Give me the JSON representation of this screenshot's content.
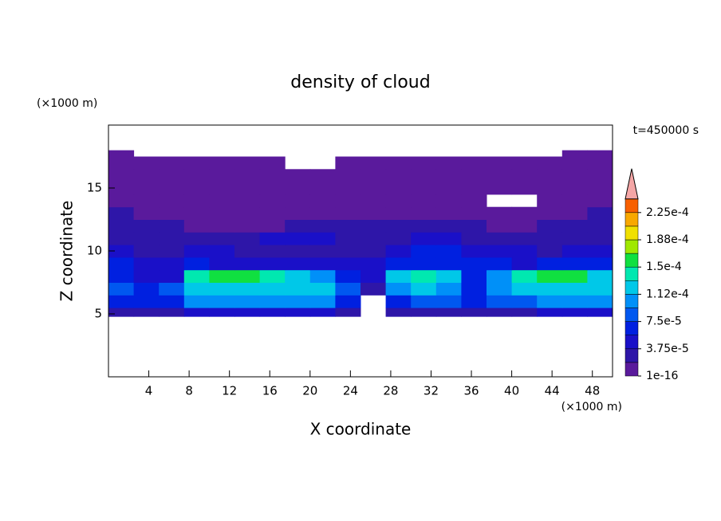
{
  "chart_data": {
    "type": "contour",
    "title": "density of cloud",
    "subtitle": "t=450000 s",
    "xlabel": "X coordinate",
    "ylabel": "Z coordinate",
    "xunit": "(×1000 m)",
    "yunit": "(×1000 m)",
    "xlim": [
      0,
      50
    ],
    "ylim": [
      0,
      20
    ],
    "xticks": [
      4,
      8,
      12,
      16,
      20,
      24,
      28,
      32,
      36,
      40,
      44,
      48
    ],
    "yticks": [
      5,
      10,
      15
    ],
    "x": [
      0,
      2.5,
      5,
      7.5,
      10,
      12.5,
      15,
      17.5,
      20,
      22.5,
      25,
      27.5,
      30,
      32.5,
      35,
      37.5,
      40,
      42.5,
      45,
      47.5,
      50
    ],
    "y": [
      4.8,
      5.5,
      6.5,
      7.5,
      8.5,
      9.5,
      10.5,
      11.5,
      12.5,
      13.5,
      14.5,
      15.5,
      16.5,
      17.5,
      18
    ],
    "z": [
      [
        3e-05,
        3e-05,
        3e-05,
        5e-05,
        5e-05,
        5e-05,
        5e-05,
        5e-05,
        5e-05,
        3e-05,
        null,
        3e-05,
        3e-05,
        3e-05,
        3e-05,
        3e-05,
        3e-05,
        5e-05,
        5e-05,
        5e-05
      ],
      [
        7e-05,
        7e-05,
        7e-05,
        0.00011,
        0.00011,
        0.00011,
        0.00011,
        0.00011,
        0.00011,
        7e-05,
        null,
        7e-05,
        9e-05,
        9e-05,
        7e-05,
        9e-05,
        9e-05,
        0.00011,
        0.00011,
        0.00011
      ],
      [
        9e-05,
        7e-05,
        9e-05,
        0.00013,
        0.00013,
        0.00013,
        0.00013,
        0.00013,
        0.00013,
        9e-05,
        3e-05,
        0.00011,
        0.00013,
        0.00011,
        7e-05,
        0.00011,
        0.00013,
        0.00013,
        0.00013,
        0.00013
      ],
      [
        7e-05,
        5e-05,
        5e-05,
        0.000145,
        0.00016,
        0.00016,
        0.000145,
        0.00013,
        0.00011,
        7e-05,
        5e-05,
        0.00013,
        0.000145,
        0.00013,
        7e-05,
        0.00011,
        0.000145,
        0.00016,
        0.00016,
        0.00013
      ],
      [
        7e-05,
        5e-05,
        5e-05,
        7e-05,
        5e-05,
        5e-05,
        5e-05,
        5e-05,
        5e-05,
        5e-05,
        5e-05,
        7e-05,
        7e-05,
        7e-05,
        7e-05,
        7e-05,
        5e-05,
        7e-05,
        7e-05,
        7e-05
      ],
      [
        5e-05,
        3e-05,
        3e-05,
        5e-05,
        5e-05,
        3e-05,
        3e-05,
        3e-05,
        3e-05,
        3e-05,
        3e-05,
        5e-05,
        7e-05,
        7e-05,
        5e-05,
        5e-05,
        5e-05,
        3e-05,
        5e-05,
        5e-05
      ],
      [
        3e-05,
        3e-05,
        3e-05,
        3e-05,
        3e-05,
        3e-05,
        5e-05,
        5e-05,
        5e-05,
        3e-05,
        3e-05,
        3e-05,
        5e-05,
        5e-05,
        3e-05,
        3e-05,
        3e-05,
        3e-05,
        3e-05,
        3e-05
      ],
      [
        3e-05,
        3e-05,
        3e-05,
        1e-05,
        1e-05,
        1e-05,
        1e-05,
        3e-05,
        3e-05,
        3e-05,
        3e-05,
        3e-05,
        3e-05,
        3e-05,
        3e-05,
        1e-05,
        1e-05,
        3e-05,
        3e-05,
        3e-05
      ],
      [
        3e-05,
        1e-05,
        1e-05,
        1e-05,
        1e-05,
        1e-05,
        1e-05,
        1e-05,
        1e-05,
        1e-05,
        1e-05,
        1e-05,
        1e-05,
        1e-05,
        1e-05,
        1e-05,
        1e-05,
        1e-05,
        1e-05,
        3e-05
      ],
      [
        1e-05,
        1e-05,
        1e-05,
        1e-05,
        1e-05,
        1e-05,
        1e-05,
        1e-05,
        1e-05,
        1e-05,
        1e-05,
        1e-05,
        1e-05,
        1e-05,
        1e-05,
        null,
        null,
        1e-05,
        1e-05,
        1e-05
      ],
      [
        1e-05,
        1e-05,
        1e-05,
        1e-05,
        1e-05,
        1e-05,
        1e-05,
        1e-05,
        1e-05,
        1e-05,
        1e-05,
        1e-05,
        1e-05,
        1e-05,
        1e-05,
        1e-05,
        1e-05,
        1e-05,
        1e-05,
        1e-05
      ],
      [
        1e-05,
        1e-05,
        1e-05,
        1e-05,
        1e-05,
        1e-05,
        1e-05,
        1e-05,
        1e-05,
        1e-05,
        1e-05,
        1e-05,
        1e-05,
        1e-05,
        1e-05,
        1e-05,
        1e-05,
        1e-05,
        1e-05,
        1e-05
      ],
      [
        1e-05,
        1e-05,
        1e-05,
        1e-05,
        1e-05,
        1e-05,
        1e-05,
        null,
        null,
        1e-05,
        1e-05,
        1e-05,
        1e-05,
        1e-05,
        1e-05,
        1e-05,
        1e-05,
        1e-05,
        1e-05,
        1e-05
      ],
      [
        1e-05,
        null,
        null,
        null,
        null,
        null,
        null,
        null,
        null,
        null,
        null,
        null,
        null,
        null,
        null,
        null,
        null,
        null,
        1e-05,
        1e-05
      ]
    ],
    "levels": [
      1e-16,
      1.875e-05,
      3.75e-05,
      5.625e-05,
      7.5e-05,
      9.375e-05,
      0.0001125,
      0.00013125,
      0.00015,
      0.00016875,
      0.0001875,
      0.00020625,
      0.000225,
      0.00024375
    ],
    "colors": [
      "#5a1a9c",
      "#2e16a8",
      "#1a10c8",
      "#0020e0",
      "#0058f0",
      "#0090f8",
      "#00c8e8",
      "#00e8b0",
      "#10e040",
      "#a0e800",
      "#f0e000",
      "#f8a800",
      "#f86000",
      "#f01e10"
    ],
    "extend_color": "#f4a6a6",
    "colorbar_ticks": [
      {
        "value": 1e-16,
        "label": "1e-16"
      },
      {
        "value": 3.75e-05,
        "label": "3.75e-5"
      },
      {
        "value": 7.5e-05,
        "label": "7.5e-5"
      },
      {
        "value": 0.0001125,
        "label": "1.12e-4"
      },
      {
        "value": 0.00015,
        "label": "1.5e-4"
      },
      {
        "value": 0.0001875,
        "label": "1.88e-4"
      },
      {
        "value": 0.000225,
        "label": "2.25e-4"
      }
    ]
  }
}
